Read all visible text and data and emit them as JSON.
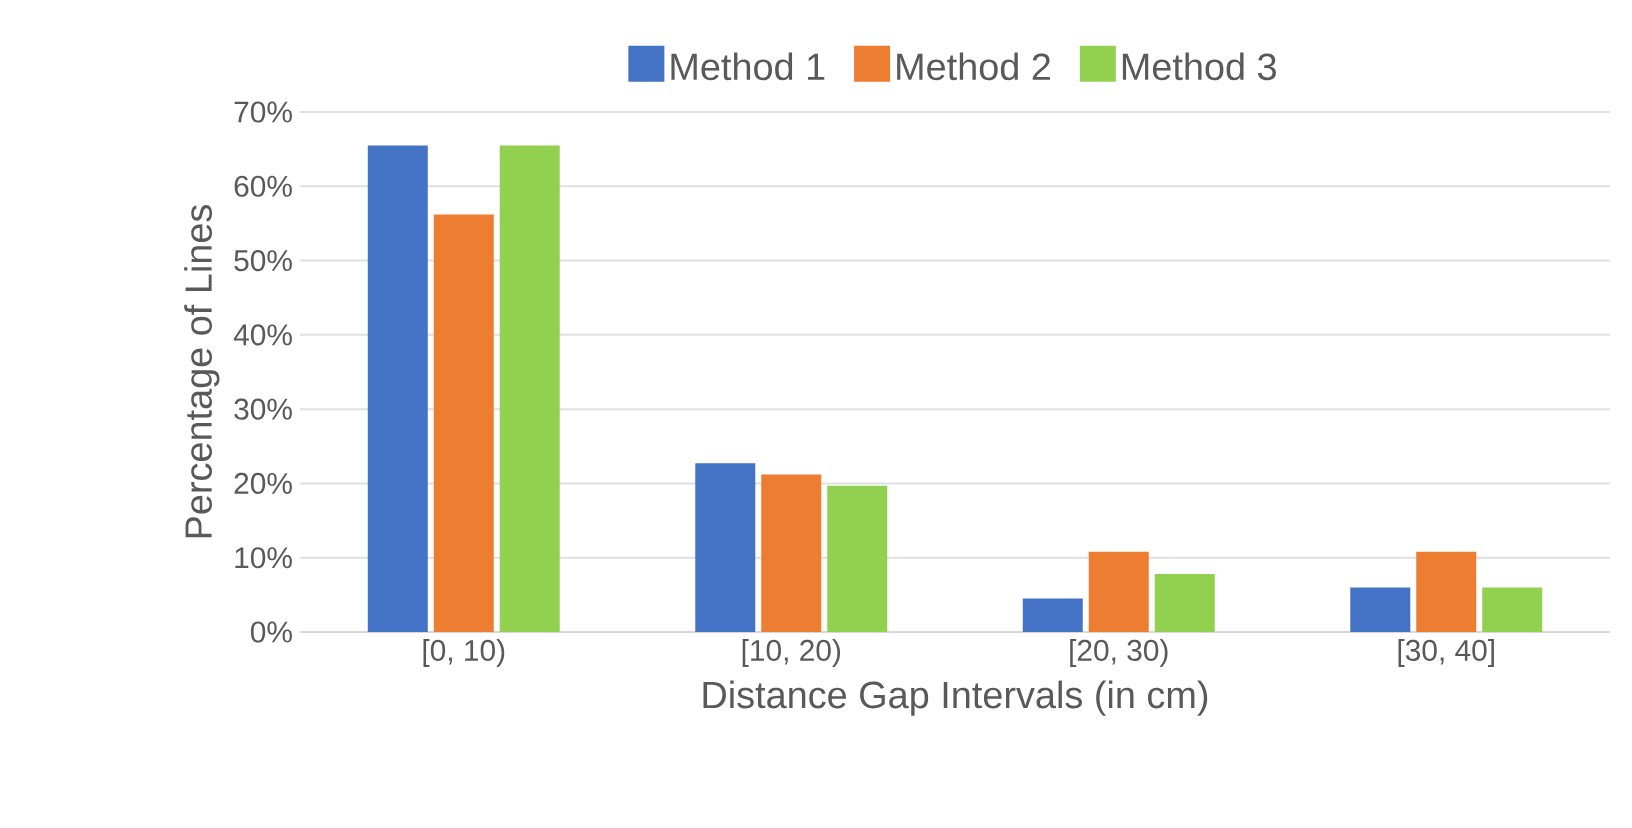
{
  "chart_data": {
    "type": "bar",
    "xlabel": "Distance Gap Intervals (in cm)",
    "ylabel": "Percentage of Lines",
    "categories": [
      "[0, 10)",
      "[10, 20)",
      "[20, 30)",
      "[30, 40]"
    ],
    "series": [
      {
        "name": "Method 1",
        "color": "#4472c4",
        "values": [
          65.5,
          22.7,
          4.5,
          6.0
        ]
      },
      {
        "name": "Method 2",
        "color": "#ed7d31",
        "values": [
          56.2,
          21.2,
          10.8,
          10.8
        ]
      },
      {
        "name": "Method 3",
        "color": "#92d050",
        "values": [
          65.5,
          19.7,
          7.8,
          6.0
        ]
      }
    ],
    "ylim": [
      0,
      70
    ],
    "yticks": [
      {
        "value": 0,
        "label": "0%"
      },
      {
        "value": 10,
        "label": "10%"
      },
      {
        "value": 20,
        "label": "20%"
      },
      {
        "value": 30,
        "label": "30%"
      },
      {
        "value": 40,
        "label": "40%"
      },
      {
        "value": 50,
        "label": "50%"
      },
      {
        "value": 60,
        "label": "60%"
      },
      {
        "value": 70,
        "label": "70%"
      }
    ],
    "grid": "y",
    "legend": "top"
  }
}
